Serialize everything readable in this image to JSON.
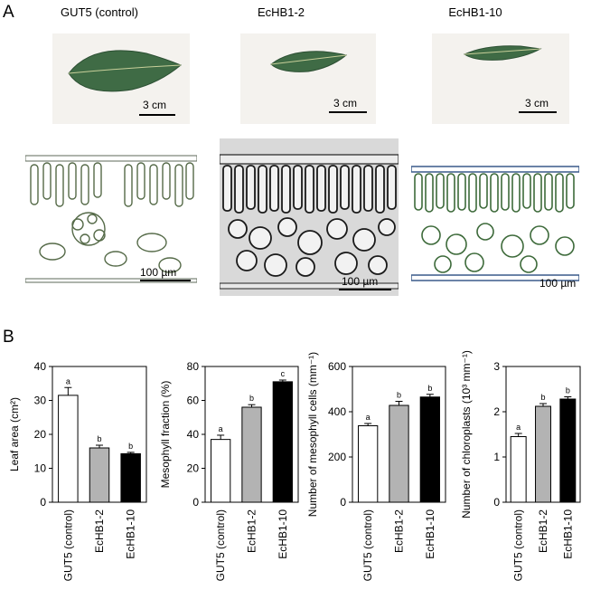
{
  "panel_a": {
    "letter": "A",
    "columns": [
      {
        "title": "GUT5 (control)",
        "leaf_scale": "3 cm",
        "section_scale": "100 µm"
      },
      {
        "title": "EcHB1-2",
        "leaf_scale": "3 cm",
        "section_scale": "100 µm"
      },
      {
        "title": "EcHB1-10",
        "leaf_scale": "3 cm",
        "section_scale": "100 µm"
      }
    ]
  },
  "panel_b": {
    "letter": "B"
  },
  "chart_data": [
    {
      "type": "bar",
      "categories": [
        "GUT5 (control)",
        "EcHB1-2",
        "EcHB1-10"
      ],
      "values": [
        31.5,
        16.0,
        14.3
      ],
      "errors": [
        2.3,
        0.8,
        0.4
      ],
      "letters": [
        "a",
        "b",
        "b"
      ],
      "colors": [
        "#ffffff",
        "#b3b3b3",
        "#000000"
      ],
      "ylabel": "Leaf area (cm²)",
      "ylim": [
        0,
        40
      ],
      "yticks": [
        "0",
        "10",
        "20",
        "30",
        "40"
      ]
    },
    {
      "type": "bar",
      "categories": [
        "GUT5 (control)",
        "EcHB1-2",
        "EcHB1-10"
      ],
      "values": [
        37,
        56,
        71
      ],
      "errors": [
        2.5,
        1.5,
        1.0
      ],
      "letters": [
        "a",
        "b",
        "c"
      ],
      "colors": [
        "#ffffff",
        "#b3b3b3",
        "#000000"
      ],
      "ylabel": "Mesophyll fraction (%)",
      "ylim": [
        0,
        80
      ],
      "yticks": [
        "0",
        "20",
        "40",
        "60",
        "80"
      ]
    },
    {
      "type": "bar",
      "categories": [
        "GUT5 (control)",
        "EcHB1-2",
        "EcHB1-10"
      ],
      "values": [
        338,
        428,
        465
      ],
      "errors": [
        10,
        18,
        12
      ],
      "letters": [
        "a",
        "b",
        "b"
      ],
      "colors": [
        "#ffffff",
        "#b3b3b3",
        "#000000"
      ],
      "ylabel": "Number of mesophyll cells (mm⁻¹)",
      "ylim": [
        0,
        600
      ],
      "yticks": [
        "0",
        "200",
        "400",
        "600"
      ]
    },
    {
      "type": "bar",
      "categories": [
        "GUT5 (control)",
        "EcHB1-2",
        "EcHB1-10"
      ],
      "values": [
        1.45,
        2.12,
        2.28
      ],
      "errors": [
        0.07,
        0.06,
        0.05
      ],
      "letters": [
        "a",
        "b",
        "b"
      ],
      "colors": [
        "#ffffff",
        "#b3b3b3",
        "#000000"
      ],
      "ylabel": "Number of chloroplasts (10³ mm⁻¹)",
      "ylim": [
        0,
        3
      ],
      "yticks": [
        "0",
        "1",
        "2",
        "3"
      ]
    }
  ]
}
